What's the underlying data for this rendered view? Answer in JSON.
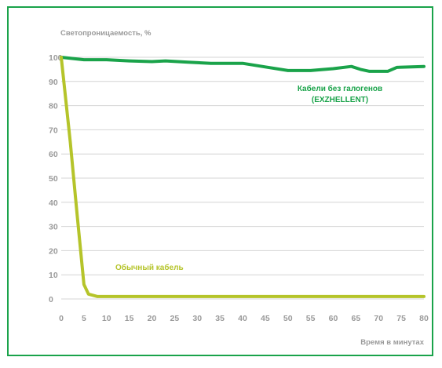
{
  "chart_data": {
    "type": "line",
    "title": "",
    "ylabel": "Светопроницаемость, %",
    "xlabel": "Время в минутах",
    "xlim": [
      0,
      80
    ],
    "ylim": [
      0,
      100
    ],
    "x_ticks": [
      0,
      5,
      10,
      15,
      20,
      25,
      30,
      35,
      40,
      45,
      50,
      55,
      60,
      65,
      70,
      75,
      80
    ],
    "y_ticks": [
      0,
      10,
      20,
      30,
      40,
      50,
      60,
      70,
      80,
      90,
      100
    ],
    "grid": "horizontal",
    "series": [
      {
        "annotation_lines": [
          "Кабели без галогенов",
          "(EXZHELLENT)"
        ],
        "color": "#1aa34a",
        "points": [
          [
            0,
            100
          ],
          [
            5,
            99
          ],
          [
            10,
            99
          ],
          [
            15,
            98.5
          ],
          [
            20,
            98.2
          ],
          [
            23,
            98.5
          ],
          [
            28,
            98
          ],
          [
            33,
            97.5
          ],
          [
            40,
            97.5
          ],
          [
            45,
            96
          ],
          [
            50,
            94.5
          ],
          [
            55,
            94.5
          ],
          [
            60,
            95.3
          ],
          [
            64,
            96.2
          ],
          [
            66,
            95
          ],
          [
            68,
            94.2
          ],
          [
            72,
            94.2
          ],
          [
            74,
            95.8
          ],
          [
            80,
            96.2
          ]
        ]
      },
      {
        "annotation_lines": [
          "Обычный кабель"
        ],
        "color": "#b5c42a",
        "points": [
          [
            0,
            100
          ],
          [
            2,
            65
          ],
          [
            3.5,
            35
          ],
          [
            5,
            6
          ],
          [
            6,
            2
          ],
          [
            8,
            1
          ],
          [
            10,
            1
          ],
          [
            20,
            1
          ],
          [
            40,
            1
          ],
          [
            60,
            1
          ],
          [
            80,
            1
          ]
        ]
      }
    ]
  }
}
